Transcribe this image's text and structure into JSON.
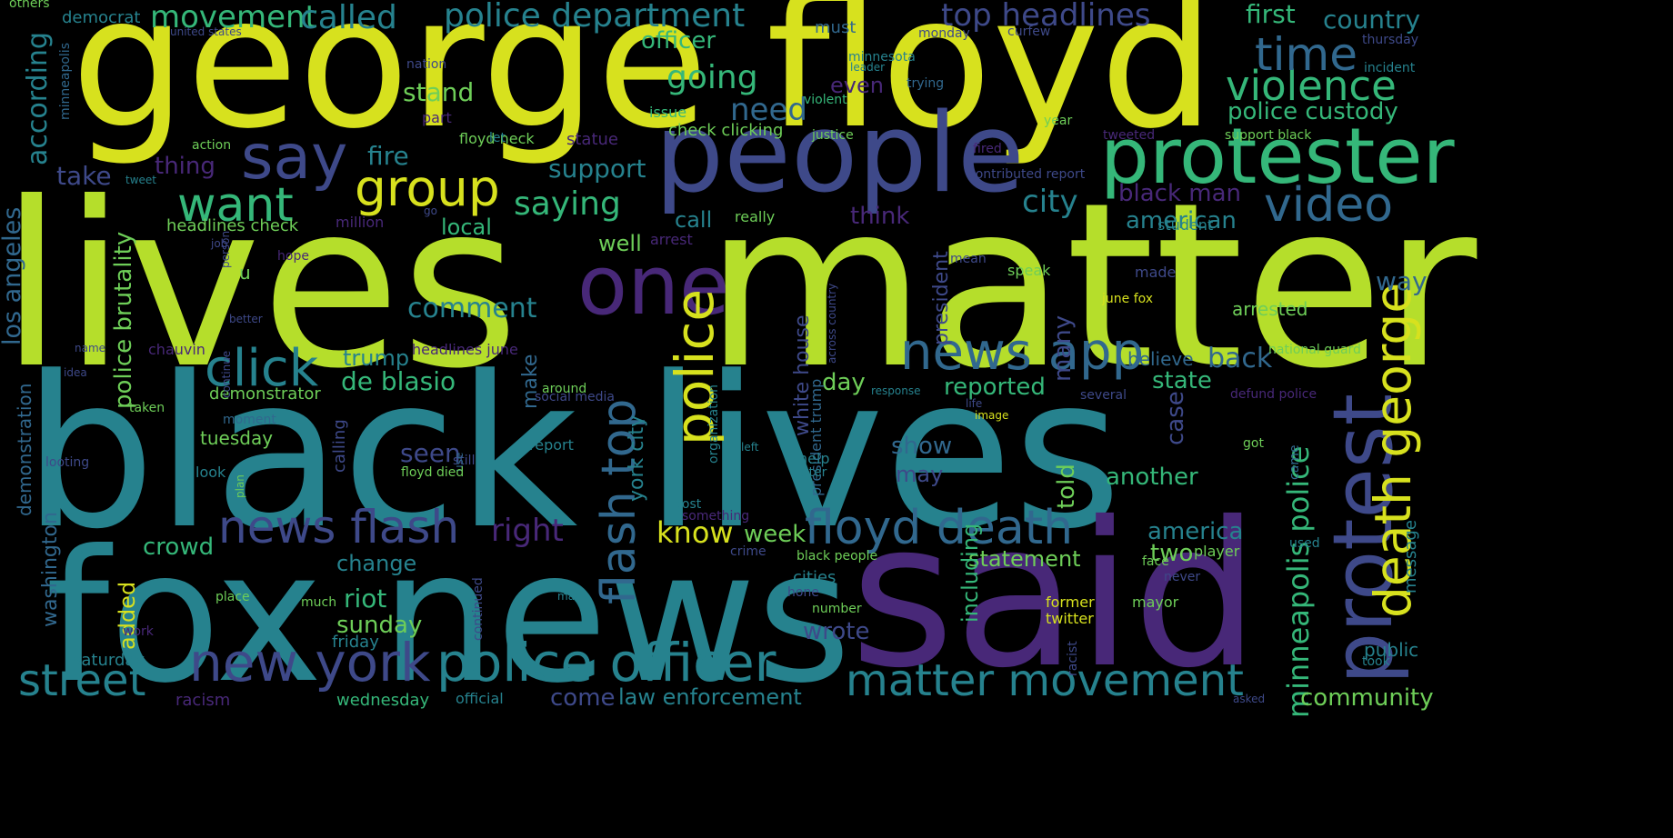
{
  "palette": {
    "yellow": "#d7e11e",
    "lime": "#b5de2b",
    "green": "#6ece58",
    "teal_green": "#35b779",
    "teal": "#26828e",
    "cyan_blue": "#31688e",
    "blue": "#3e4989",
    "purple": "#482878",
    "dark_purple": "#440154",
    "background": "#000000"
  },
  "words": [
    {
      "text": "george floyd",
      "color": "#d7e11e"
    },
    {
      "text": "lives",
      "color": "#b5de2b"
    },
    {
      "text": "matter",
      "color": "#b5de2b"
    },
    {
      "text": "black lives",
      "color": "#26828e"
    },
    {
      "text": "fox news",
      "color": "#26828e"
    },
    {
      "text": "said",
      "color": "#482878"
    },
    {
      "text": "people",
      "color": "#3e4989"
    },
    {
      "text": "one",
      "color": "#482878"
    },
    {
      "text": "protester",
      "color": "#35b779"
    },
    {
      "text": "protest",
      "color": "#3e4989"
    },
    {
      "text": "say",
      "color": "#3e4989"
    },
    {
      "text": "want",
      "color": "#35b779"
    },
    {
      "text": "group",
      "color": "#d7e11e"
    },
    {
      "text": "news app",
      "color": "#31688e"
    },
    {
      "text": "click",
      "color": "#26828e"
    },
    {
      "text": "new york",
      "color": "#3e4989"
    },
    {
      "text": "police officer",
      "color": "#26828e"
    },
    {
      "text": "news flash",
      "color": "#3e4989"
    },
    {
      "text": "floyd death",
      "color": "#31688e"
    },
    {
      "text": "street",
      "color": "#26828e"
    },
    {
      "text": "matter movement",
      "color": "#26828e"
    },
    {
      "text": "police",
      "color": "#d7e11e"
    },
    {
      "text": "flash top",
      "color": "#31688e"
    },
    {
      "text": "death george",
      "color": "#d7e11e"
    },
    {
      "text": "video",
      "color": "#31688e"
    },
    {
      "text": "violence",
      "color": "#35b779"
    },
    {
      "text": "time",
      "color": "#31688e"
    },
    {
      "text": "police department",
      "color": "#26828e"
    },
    {
      "text": "top headlines",
      "color": "#3e4989"
    },
    {
      "text": "movement",
      "color": "#35b779"
    },
    {
      "text": "called",
      "color": "#26828e"
    },
    {
      "text": "minneapolis police",
      "color": "#35b779"
    },
    {
      "text": "country",
      "color": "#26828e"
    },
    {
      "text": "first",
      "color": "#35b779"
    },
    {
      "text": "officer",
      "color": "#35b779"
    },
    {
      "text": "going",
      "color": "#35b779"
    },
    {
      "text": "need",
      "color": "#31688e"
    },
    {
      "text": "police custody",
      "color": "#35b779"
    },
    {
      "text": "stand",
      "color": "#6ece58"
    },
    {
      "text": "according",
      "color": "#26828e"
    },
    {
      "text": "los angeles",
      "color": "#31688e"
    },
    {
      "text": "police brutality",
      "color": "#6ece58"
    },
    {
      "text": "fire",
      "color": "#26828e"
    },
    {
      "text": "thing",
      "color": "#482878"
    },
    {
      "text": "take",
      "color": "#3e4989"
    },
    {
      "text": "support",
      "color": "#26828e"
    },
    {
      "text": "saying",
      "color": "#35b779"
    },
    {
      "text": "city",
      "color": "#26828e"
    },
    {
      "text": "black man",
      "color": "#482878"
    },
    {
      "text": "american",
      "color": "#26828e"
    },
    {
      "text": "local",
      "color": "#35b779"
    },
    {
      "text": "call",
      "color": "#26828e"
    },
    {
      "text": "think",
      "color": "#482878"
    },
    {
      "text": "well",
      "color": "#6ece58"
    },
    {
      "text": "president",
      "color": "#3e4989"
    },
    {
      "text": "way",
      "color": "#31688e"
    },
    {
      "text": "arrested",
      "color": "#6ece58"
    },
    {
      "text": "comment",
      "color": "#26828e"
    },
    {
      "text": "white house",
      "color": "#3e4989"
    },
    {
      "text": "trump",
      "color": "#26828e"
    },
    {
      "text": "de blasio",
      "color": "#35b779"
    },
    {
      "text": "back",
      "color": "#31688e"
    },
    {
      "text": "believe",
      "color": "#31688e"
    },
    {
      "text": "state",
      "color": "#35b779"
    },
    {
      "text": "reported",
      "color": "#35b779"
    },
    {
      "text": "day",
      "color": "#6ece58"
    },
    {
      "text": "make",
      "color": "#31688e"
    },
    {
      "text": "demonstrator",
      "color": "#6ece58"
    },
    {
      "text": "york city",
      "color": "#26828e"
    },
    {
      "text": "many",
      "color": "#3e4989"
    },
    {
      "text": "case",
      "color": "#3e4989"
    },
    {
      "text": "seen",
      "color": "#3e4989"
    },
    {
      "text": "tuesday",
      "color": "#6ece58"
    },
    {
      "text": "show",
      "color": "#31688e"
    },
    {
      "text": "may",
      "color": "#3e4989"
    },
    {
      "text": "another",
      "color": "#35b779"
    },
    {
      "text": "told",
      "color": "#6ece58"
    },
    {
      "text": "right",
      "color": "#482878"
    },
    {
      "text": "know",
      "color": "#d7e11e"
    },
    {
      "text": "week",
      "color": "#6ece58"
    },
    {
      "text": "america",
      "color": "#26828e"
    },
    {
      "text": "crowd",
      "color": "#35b779"
    },
    {
      "text": "change",
      "color": "#26828e"
    },
    {
      "text": "statement",
      "color": "#6ece58"
    },
    {
      "text": "two",
      "color": "#6ece58"
    },
    {
      "text": "riot",
      "color": "#35b779"
    },
    {
      "text": "sunday",
      "color": "#6ece58"
    },
    {
      "text": "added",
      "color": "#d7e11e"
    },
    {
      "text": "washington",
      "color": "#31688e"
    },
    {
      "text": "demonstration",
      "color": "#31688e"
    },
    {
      "text": "including",
      "color": "#35b779"
    },
    {
      "text": "wrote",
      "color": "#3e4989"
    },
    {
      "text": "cities",
      "color": "#26828e"
    },
    {
      "text": "law enforcement",
      "color": "#26828e"
    },
    {
      "text": "come",
      "color": "#3e4989"
    },
    {
      "text": "community",
      "color": "#6ece58"
    },
    {
      "text": "wednesday",
      "color": "#35b779"
    },
    {
      "text": "saturday",
      "color": "#26828e"
    },
    {
      "text": "friday",
      "color": "#26828e"
    },
    {
      "text": "public",
      "color": "#26828e"
    },
    {
      "text": "message",
      "color": "#26828e"
    },
    {
      "text": "minneapolis",
      "color": "#31688e"
    },
    {
      "text": "headlines check",
      "color": "#6ece58"
    },
    {
      "text": "million",
      "color": "#482878"
    },
    {
      "text": "u",
      "color": "#6ece58"
    },
    {
      "text": "check clicking",
      "color": "#6ece58"
    },
    {
      "text": "statue",
      "color": "#482878"
    },
    {
      "text": "floyd neck",
      "color": "#6ece58"
    },
    {
      "text": "even",
      "color": "#482878"
    },
    {
      "text": "must",
      "color": "#31688e"
    },
    {
      "text": "democrat",
      "color": "#26828e"
    },
    {
      "text": "others",
      "color": "#6ece58"
    },
    {
      "text": "united states",
      "color": "#3e4989"
    },
    {
      "text": "part",
      "color": "#482878"
    },
    {
      "text": "action",
      "color": "#6ece58"
    },
    {
      "text": "justice",
      "color": "#6ece58"
    },
    {
      "text": "issue",
      "color": "#35b779"
    },
    {
      "text": "violent",
      "color": "#35b779"
    },
    {
      "text": "trying",
      "color": "#31688e"
    },
    {
      "text": "leader",
      "color": "#26828e"
    },
    {
      "text": "minnesota",
      "color": "#26828e"
    },
    {
      "text": "nation",
      "color": "#3e4989"
    },
    {
      "text": "monday",
      "color": "#3e4989"
    },
    {
      "text": "curfew",
      "color": "#3e4989"
    },
    {
      "text": "let",
      "color": "#26828e"
    },
    {
      "text": "year",
      "color": "#6ece58"
    },
    {
      "text": "fired",
      "color": "#482878"
    },
    {
      "text": "tweeted",
      "color": "#482878"
    },
    {
      "text": "support black",
      "color": "#6ece58"
    },
    {
      "text": "contributed report",
      "color": "#3e4989"
    },
    {
      "text": "student",
      "color": "#26828e"
    },
    {
      "text": "really",
      "color": "#6ece58"
    },
    {
      "text": "arrest",
      "color": "#482878"
    },
    {
      "text": "speak",
      "color": "#6ece58"
    },
    {
      "text": "made",
      "color": "#3e4989"
    },
    {
      "text": "mean",
      "color": "#3e4989"
    },
    {
      "text": "june fox",
      "color": "#d7e11e"
    },
    {
      "text": "thursday",
      "color": "#3e4989"
    },
    {
      "text": "incident",
      "color": "#26828e"
    },
    {
      "text": "tweet",
      "color": "#26828e"
    },
    {
      "text": "go",
      "color": "#3e4989"
    },
    {
      "text": "job",
      "color": "#3e4989"
    },
    {
      "text": "hope",
      "color": "#482878"
    },
    {
      "text": "person",
      "color": "#3e4989"
    },
    {
      "text": "better",
      "color": "#3e4989"
    },
    {
      "text": "name",
      "color": "#3e4989"
    },
    {
      "text": "chauvin",
      "color": "#482878"
    },
    {
      "text": "idea",
      "color": "#3e4989"
    },
    {
      "text": "headlines june",
      "color": "#482878"
    },
    {
      "text": "national guard",
      "color": "#6ece58"
    },
    {
      "text": "across country",
      "color": "#3e4989"
    },
    {
      "text": "social media",
      "color": "#3e4989"
    },
    {
      "text": "around",
      "color": "#6ece58"
    },
    {
      "text": "response",
      "color": "#26828e"
    },
    {
      "text": "continue",
      "color": "#3e4989"
    },
    {
      "text": "several",
      "color": "#3e4989"
    },
    {
      "text": "defund police",
      "color": "#482878"
    },
    {
      "text": "life",
      "color": "#3e4989"
    },
    {
      "text": "image",
      "color": "#d7e11e"
    },
    {
      "text": "taken",
      "color": "#6ece58"
    },
    {
      "text": "moment",
      "color": "#31688e"
    },
    {
      "text": "still",
      "color": "#3e4989"
    },
    {
      "text": "use",
      "color": "#31688e"
    },
    {
      "text": "got",
      "color": "#6ece58"
    },
    {
      "text": "organization",
      "color": "#26828e"
    },
    {
      "text": "left",
      "color": "#26828e"
    },
    {
      "text": "president trump",
      "color": "#31688e"
    },
    {
      "text": "later",
      "color": "#26828e"
    },
    {
      "text": "help",
      "color": "#26828e"
    },
    {
      "text": "looting",
      "color": "#3e4989"
    },
    {
      "text": "look",
      "color": "#26828e"
    },
    {
      "text": "plan",
      "color": "#6ece58"
    },
    {
      "text": "calling",
      "color": "#3e4989"
    },
    {
      "text": "floyd died",
      "color": "#6ece58"
    },
    {
      "text": "report",
      "color": "#26828e"
    },
    {
      "text": "post",
      "color": "#26828e"
    },
    {
      "text": "something",
      "color": "#482878"
    },
    {
      "text": "came",
      "color": "#31688e"
    },
    {
      "text": "used",
      "color": "#26828e"
    },
    {
      "text": "store",
      "color": "#26828e"
    },
    {
      "text": "crime",
      "color": "#3e4989"
    },
    {
      "text": "black people",
      "color": "#6ece58"
    },
    {
      "text": "face",
      "color": "#6ece58"
    },
    {
      "text": "player",
      "color": "#6ece58"
    },
    {
      "text": "never",
      "color": "#3e4989"
    },
    {
      "text": "hone",
      "color": "#3e4989"
    },
    {
      "text": "place",
      "color": "#6ece58"
    },
    {
      "text": "much",
      "color": "#6ece58"
    },
    {
      "text": "continued",
      "color": "#3e4989"
    },
    {
      "text": "number",
      "color": "#6ece58"
    },
    {
      "text": "former",
      "color": "#d7e11e"
    },
    {
      "text": "mayor",
      "color": "#6ece58"
    },
    {
      "text": "twitter",
      "color": "#d7e11e"
    },
    {
      "text": "racist",
      "color": "#3e4989"
    },
    {
      "text": "man",
      "color": "#26828e"
    },
    {
      "text": "work",
      "color": "#482878"
    },
    {
      "text": "took",
      "color": "#26828e"
    },
    {
      "text": "asked",
      "color": "#3e4989"
    },
    {
      "text": "racism",
      "color": "#482878"
    },
    {
      "text": "official",
      "color": "#26828e"
    }
  ]
}
